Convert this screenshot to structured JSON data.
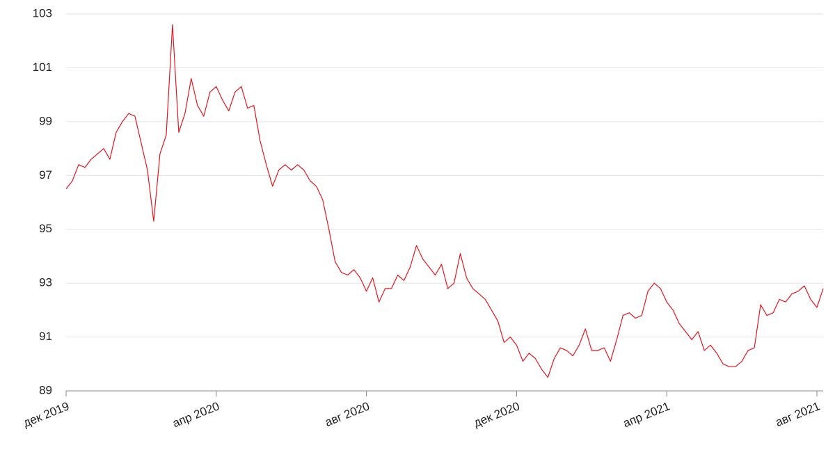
{
  "chart_data": {
    "type": "line",
    "categories": [
      "дек 2019",
      null,
      null,
      null,
      null,
      null,
      null,
      null,
      null,
      null,
      null,
      null,
      null,
      null,
      null,
      null,
      null,
      null,
      null,
      null,
      null,
      null,
      null,
      null,
      "апр 2020",
      null,
      null,
      null,
      null,
      null,
      null,
      null,
      null,
      null,
      null,
      null,
      null,
      null,
      null,
      null,
      null,
      null,
      null,
      null,
      null,
      null,
      null,
      null,
      "авг 2020",
      null,
      null,
      null,
      null,
      null,
      null,
      null,
      null,
      null,
      null,
      null,
      null,
      null,
      null,
      null,
      null,
      null,
      null,
      null,
      null,
      null,
      null,
      null,
      "дек 2020",
      null,
      null,
      null,
      null,
      null,
      null,
      null,
      null,
      null,
      null,
      null,
      null,
      null,
      null,
      null,
      null,
      null,
      null,
      null,
      null,
      null,
      null,
      null,
      "апр 2021",
      null,
      null,
      null,
      null,
      null,
      null,
      null,
      null,
      null,
      null,
      null,
      null,
      null,
      null,
      null,
      null,
      null,
      null,
      null,
      null,
      null,
      null,
      null,
      "авг 2021",
      null
    ],
    "series": [
      {
        "color": "#e8141c",
        "values": [
          96.5,
          96.8,
          97.4,
          97.3,
          97.6,
          97.8,
          98.0,
          97.6,
          98.6,
          99.0,
          99.3,
          99.2,
          98.2,
          97.2,
          95.3,
          97.8,
          98.5,
          102.6,
          98.6,
          99.3,
          100.6,
          99.6,
          99.2,
          100.1,
          100.3,
          99.8,
          99.4,
          100.1,
          100.3,
          99.5,
          99.6,
          98.3,
          97.4,
          96.6,
          97.2,
          97.4,
          97.2,
          97.4,
          97.2,
          96.8,
          96.6,
          96.1,
          95.0,
          93.8,
          93.4,
          93.3,
          93.5,
          93.2,
          92.7,
          93.2,
          92.3,
          92.8,
          92.8,
          93.3,
          93.1,
          93.6,
          94.4,
          93.9,
          93.6,
          93.3,
          93.7,
          92.8,
          93.0,
          94.1,
          93.2,
          92.8,
          92.6,
          92.4,
          92.0,
          91.6,
          90.8,
          91.0,
          90.7,
          90.1,
          90.4,
          90.2,
          89.8,
          89.5,
          90.2,
          90.6,
          90.5,
          90.3,
          90.7,
          91.3,
          90.5,
          90.5,
          90.6,
          90.1,
          90.9,
          91.8,
          91.9,
          91.7,
          91.8,
          92.7,
          93.0,
          92.8,
          92.3,
          92.0,
          91.5,
          91.2,
          90.9,
          91.2,
          90.5,
          90.7,
          90.4,
          90.0,
          89.9,
          89.9,
          90.1,
          90.5,
          90.6,
          92.2,
          91.8,
          91.9,
          92.4,
          92.3,
          92.6,
          92.7,
          92.9,
          92.4,
          92.1,
          92.8
        ]
      }
    ],
    "ylim": [
      89,
      103
    ],
    "yticks": [
      89,
      91,
      93,
      95,
      97,
      99,
      101,
      103
    ],
    "grid": true
  }
}
